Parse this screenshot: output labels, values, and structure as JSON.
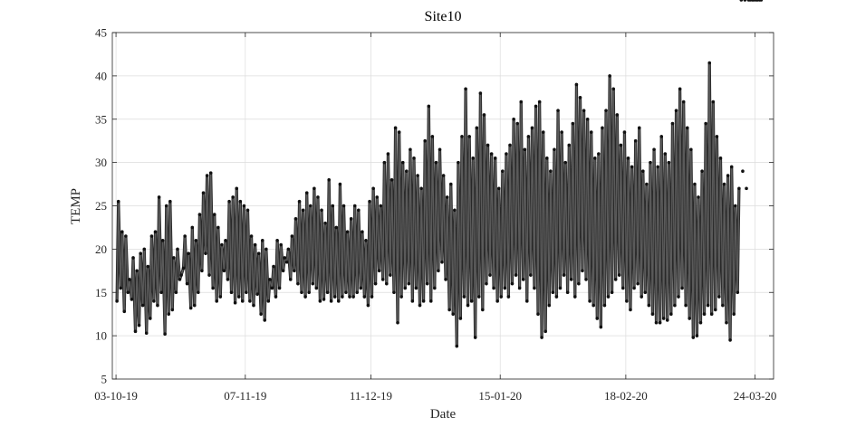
{
  "chart_data": {
    "type": "line",
    "title": "Site10",
    "xlabel": "Date",
    "ylabel": "TEMP",
    "ylim": [
      5,
      45
    ],
    "yticks": [
      5,
      10,
      15,
      20,
      25,
      30,
      35,
      40,
      45
    ],
    "xlim": [
      "2019-10-02",
      "2020-03-29"
    ],
    "xticks": [
      {
        "date": "2019-10-03",
        "label": "03-10-19"
      },
      {
        "date": "2019-11-07",
        "label": "07-11-19"
      },
      {
        "date": "2019-12-11",
        "label": "11-12-19"
      },
      {
        "date": "2020-01-15",
        "label": "15-01-20"
      },
      {
        "date": "2020-02-18",
        "label": "18-02-20"
      },
      {
        "date": "2020-03-24",
        "label": "24-03-20"
      }
    ],
    "grid": true,
    "legend": "none",
    "colors": {
      "line": "#5a5a5a",
      "marker": "#111111"
    },
    "series": [
      {
        "sampling": "daily min/max",
        "dates": [
          "2019-10-03",
          "2019-10-04",
          "2019-10-05",
          "2019-10-06",
          "2019-10-07",
          "2019-10-08",
          "2019-10-09",
          "2019-10-10",
          "2019-10-11",
          "2019-10-12",
          "2019-10-13",
          "2019-10-14",
          "2019-10-15",
          "2019-10-16",
          "2019-10-17",
          "2019-10-18",
          "2019-10-19",
          "2019-10-20",
          "2019-10-21",
          "2019-10-22",
          "2019-10-23",
          "2019-10-24",
          "2019-10-25",
          "2019-10-26",
          "2019-10-27",
          "2019-10-28",
          "2019-10-29",
          "2019-10-30",
          "2019-10-31",
          "2019-11-01",
          "2019-11-02",
          "2019-11-03",
          "2019-11-04",
          "2019-11-05",
          "2019-11-06",
          "2019-11-07",
          "2019-11-08",
          "2019-11-09",
          "2019-11-10",
          "2019-11-11",
          "2019-11-12",
          "2019-11-13",
          "2019-11-14",
          "2019-11-15",
          "2019-11-16",
          "2019-11-17",
          "2019-11-18",
          "2019-11-19",
          "2019-11-20",
          "2019-11-21",
          "2019-11-22",
          "2019-11-23",
          "2019-11-24",
          "2019-11-25",
          "2019-11-26",
          "2019-11-27",
          "2019-11-28",
          "2019-11-29",
          "2019-11-30",
          "2019-12-01",
          "2019-12-02",
          "2019-12-03",
          "2019-12-04",
          "2019-12-05",
          "2019-12-06",
          "2019-12-07",
          "2019-12-08",
          "2019-12-09",
          "2019-12-10",
          "2019-12-11",
          "2019-12-12",
          "2019-12-13",
          "2019-12-14",
          "2019-12-15",
          "2019-12-16",
          "2019-12-17",
          "2019-12-18",
          "2019-12-19",
          "2019-12-20",
          "2019-12-21",
          "2019-12-22",
          "2019-12-23",
          "2019-12-24",
          "2019-12-25",
          "2019-12-26",
          "2019-12-27",
          "2019-12-28",
          "2019-12-29",
          "2019-12-30",
          "2019-12-31",
          "2020-01-01",
          "2020-01-02",
          "2020-01-03",
          "2020-01-04",
          "2020-01-05",
          "2020-01-06",
          "2020-01-07",
          "2020-01-08",
          "2020-01-09",
          "2020-01-10",
          "2020-01-11",
          "2020-01-12",
          "2020-01-13",
          "2020-01-14",
          "2020-01-15",
          "2020-01-16",
          "2020-01-17",
          "2020-01-18",
          "2020-01-19",
          "2020-01-20",
          "2020-01-21",
          "2020-01-22",
          "2020-01-23",
          "2020-01-24",
          "2020-01-25",
          "2020-01-26",
          "2020-01-27",
          "2020-01-28",
          "2020-01-29",
          "2020-01-30",
          "2020-01-31",
          "2020-02-01",
          "2020-02-02",
          "2020-02-03",
          "2020-02-04",
          "2020-02-05",
          "2020-02-06",
          "2020-02-07",
          "2020-02-08",
          "2020-02-09",
          "2020-02-10",
          "2020-02-11",
          "2020-02-12",
          "2020-02-13",
          "2020-02-14",
          "2020-02-15",
          "2020-02-16",
          "2020-02-17",
          "2020-02-18",
          "2020-02-19",
          "2020-02-20",
          "2020-02-21",
          "2020-02-22",
          "2020-02-23",
          "2020-02-24",
          "2020-02-25",
          "2020-02-26",
          "2020-02-27",
          "2020-02-28",
          "2020-02-29",
          "2020-03-01",
          "2020-03-02",
          "2020-03-03",
          "2020-03-04",
          "2020-03-05",
          "2020-03-06",
          "2020-03-07",
          "2020-03-08",
          "2020-03-09",
          "2020-03-10",
          "2020-03-11",
          "2020-03-12",
          "2020-03-13",
          "2020-03-14",
          "2020-03-15",
          "2020-03-16",
          "2020-03-17",
          "2020-03-18",
          "2020-03-19",
          "2020-03-20",
          "2020-03-21",
          "2020-03-22",
          "2020-03-23",
          "2020-03-24",
          "2020-03-25"
        ],
        "daily_min": [
          14.0,
          15.5,
          12.8,
          15.0,
          14.2,
          10.5,
          11.2,
          13.5,
          10.3,
          12.0,
          14.0,
          13.5,
          15.0,
          10.2,
          12.5,
          13.0,
          15.0,
          16.5,
          17.8,
          16.0,
          13.2,
          13.5,
          15.0,
          17.5,
          19.5,
          17.0,
          15.5,
          14.0,
          14.5,
          17.5,
          16.5,
          15.0,
          13.8,
          14.5,
          14.0,
          15.0,
          14.0,
          13.5,
          14.8,
          12.5,
          11.8,
          14.0,
          15.5,
          14.5,
          15.5,
          17.5,
          18.5,
          16.5,
          17.5,
          16.0,
          15.0,
          14.5,
          15.0,
          16.0,
          15.5,
          14.0,
          14.2,
          15.0,
          14.0,
          14.5,
          14.0,
          14.5,
          15.0,
          14.5,
          14.5,
          15.0,
          15.5,
          14.5,
          13.5,
          14.5,
          16.0,
          17.5,
          16.5,
          16.0,
          17.0,
          15.0,
          11.5,
          14.5,
          15.5,
          16.0,
          14.0,
          15.5,
          13.5,
          14.0,
          16.0,
          14.0,
          15.5,
          17.5,
          18.5,
          16.5,
          13.0,
          12.5,
          8.8,
          12.0,
          14.5,
          13.5,
          14.0,
          9.8,
          14.5,
          13.0,
          16.0,
          17.0,
          15.5,
          14.0,
          14.5,
          15.5,
          14.5,
          16.0,
          17.0,
          15.5,
          16.5,
          14.0,
          17.0,
          15.5,
          12.5,
          9.8,
          10.5,
          13.5,
          15.0,
          14.5,
          15.5,
          17.0,
          15.0,
          16.5,
          14.5,
          16.0,
          17.5,
          16.5,
          14.0,
          13.5,
          12.0,
          11.0,
          13.5,
          14.5,
          15.0,
          16.5,
          17.0,
          15.5,
          14.0,
          13.0,
          15.5,
          16.0,
          14.5,
          15.0,
          13.5,
          12.5,
          11.5,
          11.5,
          12.0,
          11.8,
          12.5,
          13.5,
          14.5,
          15.5,
          13.5,
          12.0,
          9.8,
          10.0,
          11.5,
          12.5,
          13.5,
          12.5,
          13.0,
          14.5,
          13.5,
          11.5,
          9.5,
          12.5,
          15.0
        ],
        "daily_max": [
          25.5,
          22.0,
          21.5,
          16.5,
          19.0,
          17.5,
          19.5,
          20.0,
          18.0,
          21.5,
          22.0,
          26.0,
          21.0,
          25.0,
          25.5,
          19.0,
          20.0,
          17.0,
          21.5,
          19.5,
          22.5,
          21.0,
          24.0,
          26.5,
          28.5,
          28.8,
          24.0,
          22.5,
          20.5,
          21.0,
          25.5,
          26.0,
          27.0,
          25.5,
          25.0,
          24.5,
          21.5,
          20.5,
          19.5,
          21.0,
          20.0,
          16.5,
          18.0,
          21.0,
          20.5,
          19.0,
          20.0,
          21.5,
          23.5,
          25.5,
          24.5,
          26.5,
          25.0,
          27.0,
          26.0,
          24.5,
          23.0,
          28.0,
          25.0,
          22.5,
          27.5,
          25.0,
          22.0,
          23.5,
          25.0,
          24.5,
          22.0,
          21.0,
          25.5,
          27.0,
          26.0,
          25.0,
          30.0,
          31.0,
          28.0,
          34.0,
          33.5,
          30.0,
          29.0,
          31.5,
          30.5,
          28.5,
          27.0,
          32.5,
          36.5,
          33.0,
          30.0,
          31.5,
          28.5,
          26.0,
          27.5,
          24.5,
          30.0,
          33.0,
          38.5,
          33.0,
          30.5,
          34.0,
          38.0,
          35.5,
          32.0,
          31.0,
          30.5,
          27.0,
          29.0,
          31.0,
          32.0,
          35.0,
          34.5,
          37.0,
          31.5,
          33.0,
          34.0,
          36.5,
          37.0,
          33.5,
          30.5,
          29.0,
          31.5,
          36.0,
          33.5,
          30.0,
          32.0,
          34.5,
          39.0,
          37.5,
          36.0,
          35.0,
          33.5,
          30.5,
          31.0,
          34.0,
          36.0,
          40.0,
          38.5,
          35.5,
          32.0,
          33.5,
          30.5,
          29.5,
          32.5,
          34.0,
          29.0,
          27.5,
          30.0,
          31.5,
          29.5,
          33.0,
          31.0,
          30.0,
          34.5,
          36.0,
          38.5,
          37.0,
          34.0,
          31.5,
          27.5,
          26.0,
          29.0,
          34.5,
          41.5,
          37.0,
          33.0,
          30.5,
          27.5,
          28.5,
          29.5,
          25.0,
          27.0,
          29.0,
          27.0
        ]
      }
    ]
  }
}
